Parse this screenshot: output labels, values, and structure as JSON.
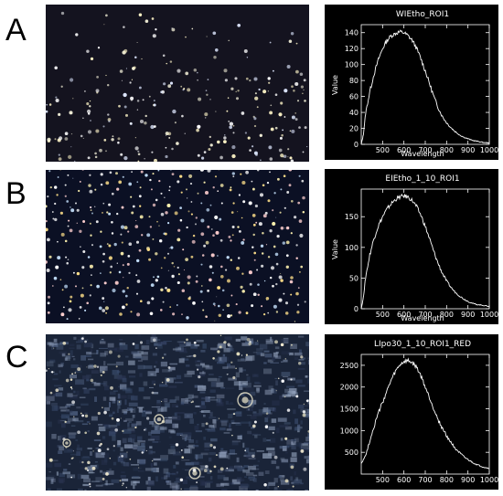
{
  "panels": [
    {
      "letter": "A",
      "micrograph": {
        "style": "sparse-bright-particles-on-dark"
      },
      "chart_data": {
        "type": "line",
        "title": "WIEtho_ROI1",
        "xlabel": "Wavelength",
        "ylabel": "Value",
        "xlim": [
          400,
          1000
        ],
        "ylim": [
          0,
          150
        ],
        "xticks": [
          500,
          600,
          700,
          800,
          900,
          1000
        ],
        "yticks": [
          0,
          20,
          40,
          60,
          80,
          100,
          120,
          140
        ],
        "x": [
          400,
          410,
          420,
          440,
          460,
          480,
          500,
          520,
          540,
          560,
          580,
          600,
          620,
          640,
          660,
          680,
          700,
          720,
          740,
          760,
          780,
          800,
          820,
          840,
          860,
          880,
          900,
          920,
          940,
          960,
          980,
          1000
        ],
        "values": [
          0,
          12,
          38,
          66,
          88,
          106,
          120,
          130,
          136,
          139,
          141,
          140,
          136,
          130,
          120,
          107,
          92,
          76,
          60,
          46,
          35,
          27,
          21,
          16,
          12,
          9,
          7,
          5,
          4,
          3,
          2,
          2
        ]
      }
    },
    {
      "letter": "B",
      "micrograph": {
        "style": "dense-regular-bright-particles-on-dark"
      },
      "chart_data": {
        "type": "line",
        "title": "EIEtho_1_10_ROI1",
        "xlabel": "Wavelength",
        "ylabel": "Value",
        "xlim": [
          400,
          1000
        ],
        "ylim": [
          0,
          195
        ],
        "xticks": [
          500,
          600,
          700,
          800,
          900,
          1000
        ],
        "yticks": [
          0,
          50,
          100,
          150
        ],
        "x": [
          400,
          410,
          420,
          440,
          460,
          480,
          500,
          520,
          540,
          560,
          580,
          600,
          620,
          640,
          660,
          680,
          700,
          720,
          740,
          760,
          780,
          800,
          820,
          840,
          860,
          880,
          900,
          920,
          940,
          960,
          980,
          1000
        ],
        "values": [
          0,
          18,
          50,
          88,
          115,
          135,
          150,
          162,
          171,
          178,
          182,
          184,
          182,
          176,
          166,
          152,
          134,
          114,
          93,
          74,
          58,
          45,
          35,
          27,
          21,
          16,
          12,
          9,
          7,
          6,
          5,
          4
        ]
      }
    },
    {
      "letter": "C",
      "micrograph": {
        "style": "textured-tissue-with-bright-specks"
      },
      "chart_data": {
        "type": "line",
        "title": "LIpo30_1_10_ROI1_RED",
        "xlabel": "",
        "ylabel": "",
        "xlim": [
          400,
          1000
        ],
        "ylim": [
          0,
          2750
        ],
        "xticks": [
          500,
          600,
          700,
          800,
          900,
          1000
        ],
        "yticks": [
          500,
          1000,
          1500,
          2000,
          2500
        ],
        "x": [
          400,
          420,
          440,
          460,
          480,
          500,
          520,
          540,
          560,
          580,
          600,
          620,
          640,
          660,
          680,
          700,
          720,
          740,
          760,
          780,
          800,
          820,
          840,
          860,
          880,
          900,
          920,
          940,
          960,
          980,
          1000
        ],
        "values": [
          250,
          420,
          760,
          1100,
          1400,
          1650,
          1900,
          2150,
          2350,
          2500,
          2580,
          2600,
          2550,
          2450,
          2250,
          2000,
          1750,
          1500,
          1250,
          1050,
          880,
          730,
          600,
          490,
          400,
          330,
          270,
          220,
          180,
          150,
          130
        ]
      }
    }
  ]
}
